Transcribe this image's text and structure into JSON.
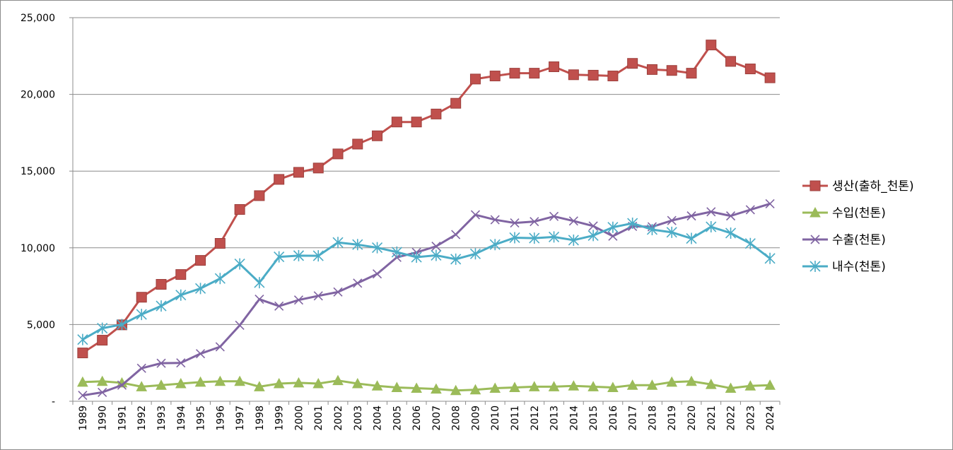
{
  "chart_data": {
    "type": "line",
    "title": "",
    "xlabel": "",
    "ylabel": "",
    "ylim": [
      0,
      25000
    ],
    "y_ticks": [
      0,
      5000,
      10000,
      15000,
      20000,
      25000
    ],
    "y_tick_labels": [
      "-",
      "5,000",
      "10,000",
      "15,000",
      "20,000",
      "25,000"
    ],
    "grid": "horizontal",
    "legend_position": "right",
    "categories": [
      "1989",
      "1990",
      "1991",
      "1992",
      "1993",
      "1994",
      "1995",
      "1996",
      "1997",
      "1998",
      "1999",
      "2000",
      "2001",
      "2002",
      "2003",
      "2004",
      "2005",
      "2006",
      "2007",
      "2008",
      "2009",
      "2010",
      "2011",
      "2012",
      "2013",
      "2014",
      "2015",
      "2016",
      "2017",
      "2018",
      "2019",
      "2020",
      "2021",
      "2022",
      "2023",
      "2024"
    ],
    "series": [
      {
        "name": "생산(출하_천톤)",
        "color": "#C0504D",
        "marker": "square",
        "values": [
          3150,
          3980,
          4980,
          6780,
          7620,
          8260,
          9180,
          10290,
          12500,
          13400,
          14460,
          14920,
          15200,
          16120,
          16760,
          17300,
          18200,
          18200,
          18720,
          19420,
          21000,
          21200,
          21380,
          21380,
          21800,
          21280,
          21250,
          21200,
          22020,
          21620,
          21560,
          21380,
          23220,
          22150,
          21660,
          21080
        ]
      },
      {
        "name": "수입(천톤)",
        "color": "#9BBB59",
        "marker": "triangle",
        "values": [
          1250,
          1300,
          1200,
          950,
          1050,
          1150,
          1250,
          1300,
          1300,
          950,
          1150,
          1200,
          1150,
          1350,
          1150,
          1000,
          900,
          850,
          800,
          700,
          750,
          850,
          900,
          950,
          950,
          1000,
          950,
          900,
          1050,
          1050,
          1250,
          1300,
          1100,
          850,
          1000,
          1050
        ]
      },
      {
        "name": "수출(천톤)",
        "color": "#8064A2",
        "marker": "x",
        "values": [
          380,
          580,
          1050,
          2150,
          2480,
          2500,
          3100,
          3550,
          4950,
          6650,
          6200,
          6600,
          6870,
          7120,
          7700,
          8300,
          9380,
          9700,
          10100,
          10860,
          12150,
          11830,
          11620,
          11710,
          12050,
          11750,
          11420,
          10760,
          11400,
          11370,
          11780,
          12080,
          12350,
          12080,
          12480,
          12870
        ]
      },
      {
        "name": "내수(천톤)",
        "color": "#4BACC6",
        "marker": "asterisk",
        "values": [
          4020,
          4760,
          5000,
          5660,
          6210,
          6920,
          7350,
          8000,
          8950,
          7730,
          9410,
          9490,
          9480,
          10350,
          10210,
          10010,
          9720,
          9390,
          9510,
          9260,
          9610,
          10210,
          10660,
          10630,
          10710,
          10500,
          10800,
          11340,
          11600,
          11190,
          11010,
          10610,
          11370,
          10960,
          10280,
          9310
        ]
      }
    ]
  }
}
